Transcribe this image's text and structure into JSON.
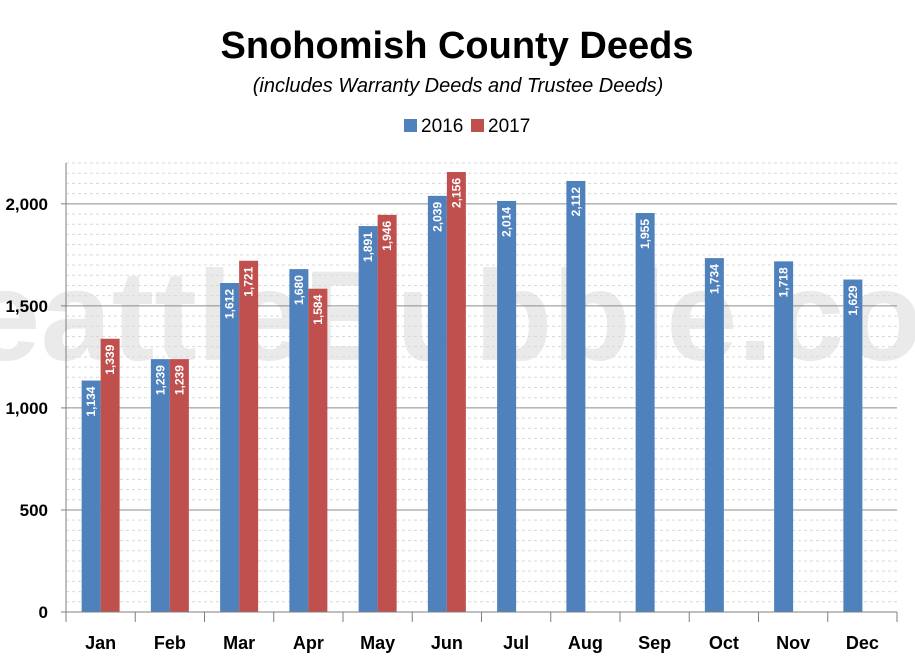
{
  "watermark": "SeattleBubble.com",
  "colors": {
    "series_2016": "#4f81bd",
    "series_2017": "#c0504d",
    "major_grid": "#8c8c8c",
    "minor_grid": "#d9d9d9",
    "axis": "#7f7f7f"
  },
  "chart_data": {
    "type": "bar",
    "title": "Snohomish County Deeds",
    "subtitle": "(includes Warranty Deeds and Trustee Deeds)",
    "xlabel": "",
    "ylabel": "",
    "categories": [
      "Jan",
      "Feb",
      "Mar",
      "Apr",
      "May",
      "Jun",
      "Jul",
      "Aug",
      "Sep",
      "Oct",
      "Nov",
      "Dec"
    ],
    "series": [
      {
        "name": "2016",
        "values": [
          1134,
          1239,
          1612,
          1680,
          1891,
          2039,
          2014,
          2112,
          1955,
          1734,
          1718,
          1629
        ],
        "labels": [
          "1,134",
          "1,239",
          "1,612",
          "1,680",
          "1,891",
          "2,039",
          "2,014",
          "2,112",
          "1,955",
          "1,734",
          "1,718",
          "1,629"
        ]
      },
      {
        "name": "2017",
        "values": [
          1339,
          1239,
          1721,
          1584,
          1946,
          2156,
          null,
          null,
          null,
          null,
          null,
          null
        ],
        "labels": [
          "1,339",
          "1,239",
          "1,721",
          "1,584",
          "1,946",
          "2,156",
          "",
          "",
          "",
          "",
          "",
          ""
        ]
      }
    ],
    "ylim": [
      0,
      2200
    ],
    "yticks": [
      0,
      500,
      1000,
      1500,
      2000
    ],
    "ytick_labels": [
      "0",
      "500",
      "1,000",
      "1,500",
      "2,000"
    ],
    "grid": true,
    "legend_position": "top-center"
  }
}
